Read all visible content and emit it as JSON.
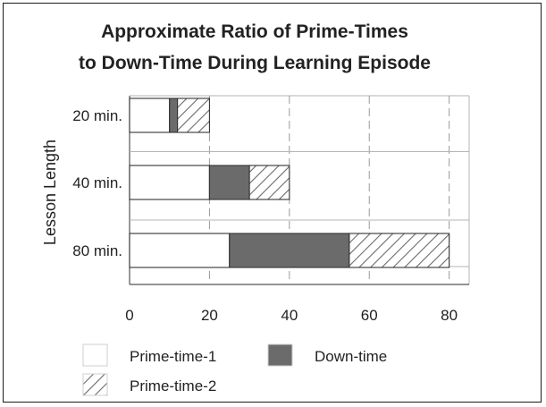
{
  "chart_data": {
    "type": "bar",
    "orientation": "horizontal",
    "stacked": true,
    "title": "Approximate Ratio of Prime-Times to Down-Time During Learning Episode",
    "title_lines": [
      "Approximate Ratio of Prime-Times",
      "to Down-Time During Learning Episode"
    ],
    "ylabel": "Lesson Length",
    "xlabel": "",
    "categories": [
      "20 min.",
      "40 min.",
      "80 min."
    ],
    "series": [
      {
        "name": "Prime-time-1",
        "values": [
          10,
          20,
          25
        ],
        "fill": "none"
      },
      {
        "name": "Down-time",
        "values": [
          2,
          10,
          30
        ],
        "fill": "solid"
      },
      {
        "name": "Prime-time-2",
        "values": [
          8,
          10,
          25
        ],
        "fill": "hatched"
      }
    ],
    "xlim": [
      0,
      85
    ],
    "xticks": [
      0,
      20,
      40,
      60,
      80
    ],
    "xtick_labels": [
      "0",
      "20",
      "40",
      "60",
      "80"
    ],
    "grid": "vertical-dashed",
    "legend_position": "bottom",
    "colors": {
      "down_time": "#6b6b6b",
      "hatch": "#6b6b6b",
      "outline": "#333333",
      "grid": "#9a9a9a"
    }
  }
}
